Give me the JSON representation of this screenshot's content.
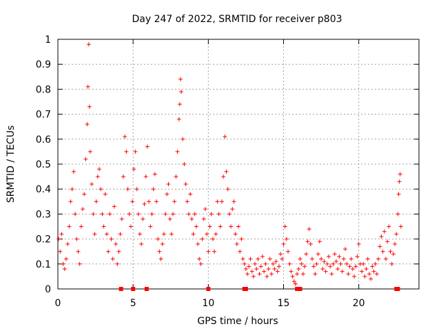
{
  "chart_data": {
    "type": "scatter",
    "title": "Day 247 of 2022, SRMTID for receiver p803",
    "xlabel": "GPS time / hours",
    "ylabel": "SRMTID / TECUs",
    "xlim": [
      0,
      24
    ],
    "ylim": [
      0,
      1
    ],
    "x_ticks": [
      {
        "value": 0,
        "label": "0"
      },
      {
        "value": 5,
        "label": "5"
      },
      {
        "value": 10,
        "label": "10"
      },
      {
        "value": 15,
        "label": "15"
      },
      {
        "value": 20,
        "label": "20"
      }
    ],
    "y_ticks": [
      {
        "value": 0,
        "label": "0"
      },
      {
        "value": 0.1,
        "label": "0.1"
      },
      {
        "value": 0.2,
        "label": "0.2"
      },
      {
        "value": 0.3,
        "label": "0.3"
      },
      {
        "value": 0.4,
        "label": "0.4"
      },
      {
        "value": 0.5,
        "label": "0.5"
      },
      {
        "value": 0.6,
        "label": "0.6"
      },
      {
        "value": 0.7,
        "label": "0.7"
      },
      {
        "value": 0.8,
        "label": "0.8"
      },
      {
        "value": 0.9,
        "label": "0.9"
      },
      {
        "value": 1,
        "label": "1"
      }
    ],
    "grid": true,
    "marker": "plus",
    "color": "#ff0000",
    "series": [
      {
        "name": "SRMTID",
        "points": [
          [
            0.05,
            0.2
          ],
          [
            0.15,
            0.15
          ],
          [
            0.25,
            0.22
          ],
          [
            0.35,
            0.1
          ],
          [
            0.45,
            0.08
          ],
          [
            0.55,
            0.12
          ],
          [
            0.65,
            0.18
          ],
          [
            0.75,
            0.25
          ],
          [
            0.85,
            0.35
          ],
          [
            0.95,
            0.4
          ],
          [
            1.05,
            0.47
          ],
          [
            1.15,
            0.3
          ],
          [
            1.25,
            0.2
          ],
          [
            1.35,
            0.15
          ],
          [
            1.45,
            0.1
          ],
          [
            1.55,
            0.25
          ],
          [
            1.65,
            0.32
          ],
          [
            1.75,
            0.38
          ],
          [
            1.85,
            0.52
          ],
          [
            1.95,
            0.66
          ],
          [
            2.0,
            0.81
          ],
          [
            2.05,
            0.98
          ],
          [
            2.1,
            0.73
          ],
          [
            2.15,
            0.55
          ],
          [
            2.25,
            0.42
          ],
          [
            2.35,
            0.3
          ],
          [
            2.45,
            0.22
          ],
          [
            2.55,
            0.35
          ],
          [
            2.65,
            0.45
          ],
          [
            2.75,
            0.48
          ],
          [
            2.85,
            0.4
          ],
          [
            2.95,
            0.3
          ],
          [
            3.05,
            0.25
          ],
          [
            3.15,
            0.38
          ],
          [
            3.25,
            0.22
          ],
          [
            3.35,
            0.15
          ],
          [
            3.45,
            0.3
          ],
          [
            3.55,
            0.2
          ],
          [
            3.65,
            0.12
          ],
          [
            3.75,
            0.33
          ],
          [
            3.85,
            0.18
          ],
          [
            3.95,
            0.1
          ],
          [
            4.05,
            0.15
          ],
          [
            4.15,
            0.22
          ],
          [
            4.25,
            0.28
          ],
          [
            4.35,
            0.45
          ],
          [
            4.45,
            0.61
          ],
          [
            4.55,
            0.55
          ],
          [
            4.65,
            0.4
          ],
          [
            4.75,
            0.3
          ],
          [
            4.85,
            0.25
          ],
          [
            4.95,
            0.35
          ],
          [
            5.05,
            0.48
          ],
          [
            5.15,
            0.55
          ],
          [
            5.25,
            0.4
          ],
          [
            5.35,
            0.3
          ],
          [
            5.45,
            0.22
          ],
          [
            5.55,
            0.18
          ],
          [
            5.65,
            0.28
          ],
          [
            5.75,
            0.34
          ],
          [
            5.85,
            0.45
          ],
          [
            5.95,
            0.57
          ],
          [
            6.05,
            0.35
          ],
          [
            6.15,
            0.25
          ],
          [
            6.25,
            0.3
          ],
          [
            6.35,
            0.4
          ],
          [
            6.45,
            0.46
          ],
          [
            6.55,
            0.35
          ],
          [
            6.65,
            0.2
          ],
          [
            6.75,
            0.15
          ],
          [
            6.85,
            0.12
          ],
          [
            6.95,
            0.18
          ],
          [
            7.05,
            0.22
          ],
          [
            7.15,
            0.3
          ],
          [
            7.25,
            0.38
          ],
          [
            7.35,
            0.42
          ],
          [
            7.45,
            0.28
          ],
          [
            7.55,
            0.22
          ],
          [
            7.65,
            0.3
          ],
          [
            7.75,
            0.35
          ],
          [
            7.85,
            0.45
          ],
          [
            7.95,
            0.55
          ],
          [
            8.05,
            0.68
          ],
          [
            8.1,
            0.74
          ],
          [
            8.15,
            0.84
          ],
          [
            8.2,
            0.79
          ],
          [
            8.3,
            0.6
          ],
          [
            8.4,
            0.5
          ],
          [
            8.5,
            0.42
          ],
          [
            8.6,
            0.35
          ],
          [
            8.7,
            0.3
          ],
          [
            8.8,
            0.38
          ],
          [
            8.9,
            0.28
          ],
          [
            9.0,
            0.22
          ],
          [
            9.1,
            0.3
          ],
          [
            9.2,
            0.25
          ],
          [
            9.3,
            0.18
          ],
          [
            9.4,
            0.12
          ],
          [
            9.5,
            0.1
          ],
          [
            9.6,
            0.2
          ],
          [
            9.7,
            0.28
          ],
          [
            9.8,
            0.32
          ],
          [
            9.9,
            0.22
          ],
          [
            10.0,
            0.15
          ],
          [
            10.1,
            0.25
          ],
          [
            10.2,
            0.3
          ],
          [
            10.3,
            0.2
          ],
          [
            10.4,
            0.15
          ],
          [
            10.5,
            0.22
          ],
          [
            10.6,
            0.35
          ],
          [
            10.7,
            0.3
          ],
          [
            10.8,
            0.25
          ],
          [
            10.9,
            0.35
          ],
          [
            11.0,
            0.45
          ],
          [
            11.1,
            0.61
          ],
          [
            11.2,
            0.47
          ],
          [
            11.3,
            0.4
          ],
          [
            11.4,
            0.3
          ],
          [
            11.5,
            0.25
          ],
          [
            11.6,
            0.32
          ],
          [
            11.7,
            0.35
          ],
          [
            11.8,
            0.22
          ],
          [
            11.9,
            0.18
          ],
          [
            12.0,
            0.25
          ],
          [
            12.1,
            0.15
          ],
          [
            12.2,
            0.2
          ],
          [
            12.3,
            0.12
          ],
          [
            12.4,
            0.1
          ],
          [
            12.5,
            0.08
          ],
          [
            12.6,
            0.06
          ],
          [
            12.7,
            0.09
          ],
          [
            12.8,
            0.12
          ],
          [
            12.9,
            0.07
          ],
          [
            13.0,
            0.05
          ],
          [
            13.1,
            0.1
          ],
          [
            13.2,
            0.08
          ],
          [
            13.3,
            0.12
          ],
          [
            13.4,
            0.06
          ],
          [
            13.5,
            0.09
          ],
          [
            13.6,
            0.13
          ],
          [
            13.7,
            0.07
          ],
          [
            13.8,
            0.1
          ],
          [
            13.9,
            0.05
          ],
          [
            14.0,
            0.08
          ],
          [
            14.1,
            0.12
          ],
          [
            14.2,
            0.06
          ],
          [
            14.3,
            0.1
          ],
          [
            14.4,
            0.08
          ],
          [
            14.5,
            0.11
          ],
          [
            14.6,
            0.07
          ],
          [
            14.7,
            0.09
          ],
          [
            14.8,
            0.14
          ],
          [
            14.9,
            0.12
          ],
          [
            15.0,
            0.18
          ],
          [
            15.1,
            0.25
          ],
          [
            15.2,
            0.2
          ],
          [
            15.3,
            0.15
          ],
          [
            15.4,
            0.1
          ],
          [
            15.5,
            0.07
          ],
          [
            15.6,
            0.05
          ],
          [
            15.7,
            0.03
          ],
          [
            15.8,
            0.02
          ],
          [
            15.9,
            0.06
          ],
          [
            16.0,
            0.08
          ],
          [
            16.1,
            0.12
          ],
          [
            16.2,
            0.1
          ],
          [
            16.3,
            0.06
          ],
          [
            16.4,
            0.09
          ],
          [
            16.5,
            0.14
          ],
          [
            16.6,
            0.19
          ],
          [
            16.7,
            0.24
          ],
          [
            16.8,
            0.18
          ],
          [
            16.9,
            0.12
          ],
          [
            17.0,
            0.09
          ],
          [
            17.1,
            0.06
          ],
          [
            17.2,
            0.1
          ],
          [
            17.3,
            0.14
          ],
          [
            17.4,
            0.19
          ],
          [
            17.5,
            0.12
          ],
          [
            17.6,
            0.08
          ],
          [
            17.7,
            0.11
          ],
          [
            17.8,
            0.07
          ],
          [
            17.9,
            0.1
          ],
          [
            18.0,
            0.13
          ],
          [
            18.1,
            0.09
          ],
          [
            18.2,
            0.06
          ],
          [
            18.3,
            0.1
          ],
          [
            18.4,
            0.14
          ],
          [
            18.5,
            0.11
          ],
          [
            18.6,
            0.08
          ],
          [
            18.7,
            0.13
          ],
          [
            18.8,
            0.1
          ],
          [
            18.9,
            0.07
          ],
          [
            19.0,
            0.12
          ],
          [
            19.1,
            0.16
          ],
          [
            19.2,
            0.1
          ],
          [
            19.3,
            0.06
          ],
          [
            19.4,
            0.09
          ],
          [
            19.5,
            0.12
          ],
          [
            19.6,
            0.08
          ],
          [
            19.7,
            0.05
          ],
          [
            19.8,
            0.09
          ],
          [
            19.9,
            0.13
          ],
          [
            20.0,
            0.18
          ],
          [
            20.1,
            0.1
          ],
          [
            20.2,
            0.07
          ],
          [
            20.3,
            0.1
          ],
          [
            20.4,
            0.05
          ],
          [
            20.5,
            0.08
          ],
          [
            20.6,
            0.12
          ],
          [
            20.7,
            0.06
          ],
          [
            20.8,
            0.04
          ],
          [
            20.9,
            0.09
          ],
          [
            21.0,
            0.07
          ],
          [
            21.1,
            0.1
          ],
          [
            21.2,
            0.06
          ],
          [
            21.3,
            0.12
          ],
          [
            21.4,
            0.17
          ],
          [
            21.5,
            0.21
          ],
          [
            21.6,
            0.15
          ],
          [
            21.7,
            0.23
          ],
          [
            21.8,
            0.12
          ],
          [
            21.9,
            0.19
          ],
          [
            22.0,
            0.25
          ],
          [
            22.1,
            0.15
          ],
          [
            22.2,
            0.1
          ],
          [
            22.3,
            0.14
          ],
          [
            22.4,
            0.18
          ],
          [
            22.5,
            0.22
          ],
          [
            22.6,
            0.3
          ],
          [
            22.65,
            0.38
          ],
          [
            22.7,
            0.43
          ],
          [
            22.75,
            0.46
          ],
          [
            22.8,
            0.25
          ]
        ]
      }
    ],
    "baseline_markers": [
      4.2,
      5.0,
      5.9,
      10.0,
      12.4,
      12.5,
      15.9,
      16.1,
      22.5,
      22.6
    ]
  }
}
